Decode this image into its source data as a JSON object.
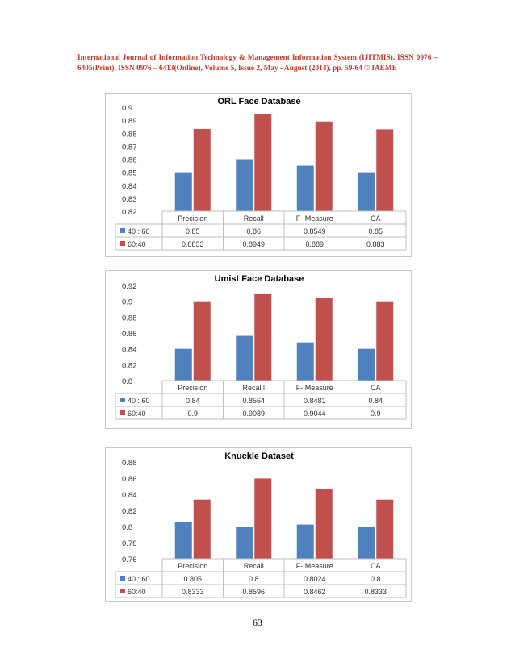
{
  "header": {
    "line1": "International Journal of Information Technology & Management Information System (IJITMIS), ISSN 0976 –",
    "line2": "6405(Print), ISSN 0976 – 6413(Online), Volume 5, Issue 2, May - August (2014), pp. 59-64 © IAEME"
  },
  "page_number": "63",
  "colors": {
    "series1": "#4f81bd",
    "series2": "#c0504d",
    "grid": "#d9d9d9"
  },
  "chart_data": [
    {
      "type": "bar",
      "title": "ORL Face Database",
      "categories": [
        "Precision",
        "Recall",
        "F- Measure",
        "CA"
      ],
      "series": [
        {
          "name": "40 : 60",
          "values": [
            0.85,
            0.86,
            0.855,
            0.85
          ],
          "labels": [
            "0.85",
            "0.86",
            "0.8549",
            "0.85"
          ]
        },
        {
          "name": "60:40",
          "values": [
            0.8833,
            0.8949,
            0.889,
            0.883
          ],
          "labels": [
            "0.8833",
            "0.8949",
            "0.889",
            "0.883"
          ]
        }
      ],
      "ylim": [
        0.82,
        0.9
      ],
      "yticks": [
        "0.9",
        "0.89",
        "0.88",
        "0.87",
        "0.86",
        "0.85",
        "0.84",
        "0.83",
        "0.82"
      ],
      "data_table": true
    },
    {
      "type": "bar",
      "title": "Umist Face Database",
      "categories": [
        "Precision",
        "Recal l",
        "F- Measure",
        "CA"
      ],
      "series": [
        {
          "name": "40 : 60",
          "values": [
            0.84,
            0.8564,
            0.8481,
            0.84
          ],
          "labels": [
            "0.84",
            "0.8564",
            "0.8481",
            "0.84"
          ]
        },
        {
          "name": "60:40",
          "values": [
            0.9,
            0.9089,
            0.9044,
            0.9
          ],
          "labels": [
            "0.9",
            "0.9089",
            "0.9044",
            "0.9"
          ]
        }
      ],
      "ylim": [
        0.8,
        0.92
      ],
      "yticks": [
        "0.92",
        "0.9",
        "0.88",
        "0.86",
        "0.84",
        "0.82",
        "0.8"
      ],
      "data_table": true
    },
    {
      "type": "bar",
      "title": "Knuckle Dataset",
      "categories": [
        "Precision",
        "Recall",
        "F- Measure",
        "CA"
      ],
      "series": [
        {
          "name": "40 : 60",
          "values": [
            0.805,
            0.8,
            0.8024,
            0.8
          ],
          "labels": [
            "0.805",
            "0.8",
            "0.8024",
            "0.8"
          ]
        },
        {
          "name": "60:40",
          "values": [
            0.8333,
            0.8596,
            0.8462,
            0.8333
          ],
          "labels": [
            "0.8333",
            "0.8596",
            "0.8462",
            "0.8333"
          ]
        }
      ],
      "ylim": [
        0.76,
        0.88
      ],
      "yticks": [
        "0.88",
        "0.86",
        "0.84",
        "0.82",
        "0.8",
        "0.78",
        "0.76"
      ],
      "data_table": true
    }
  ]
}
